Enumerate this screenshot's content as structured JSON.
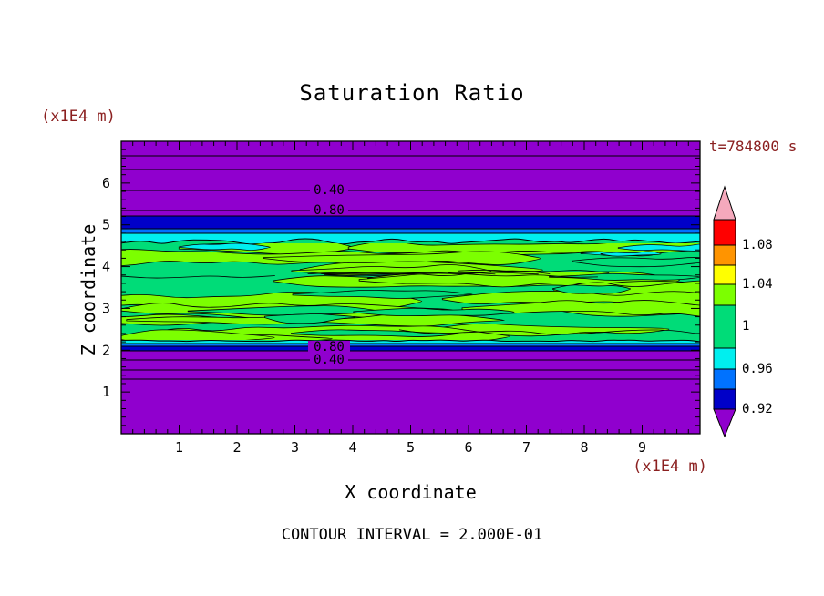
{
  "title": "Saturation Ratio",
  "annotations": {
    "time": "t=784800 s",
    "y_axis_units": "(x1E4 m)",
    "x_axis_units": "(x1E4 m)",
    "contour_interval": "CONTOUR INTERVAL = 2.000E-01"
  },
  "axes": {
    "x_label": "X coordinate",
    "y_label": "Z coordinate",
    "x_tick_labels": [
      "1",
      "2",
      "3",
      "4",
      "5",
      "6",
      "7",
      "8",
      "9"
    ],
    "y_tick_labels": [
      "1",
      "2",
      "3",
      "4",
      "5",
      "6"
    ]
  },
  "plot": {
    "contour_line_labels": [
      {
        "text": "0.40",
        "region": "top"
      },
      {
        "text": "0.80",
        "region": "top"
      },
      {
        "text": "0.80",
        "region": "bottom"
      },
      {
        "text": "0.40",
        "region": "bottom"
      }
    ]
  },
  "colorbar": {
    "tick_labels": [
      "1.08",
      "1.04",
      "1",
      "0.96",
      "0.92"
    ],
    "segment_colors_top_to_bottom": [
      "pink",
      "red",
      "orange",
      "yellow",
      "chartreuse",
      "springgreen",
      "cyan",
      "blue",
      "darkblue",
      "purple"
    ]
  },
  "colors": {
    "purple": "#9000CE",
    "darkblue": "#0000C8",
    "blue": "#0072FF",
    "cyan": "#00EFEF",
    "springgreen": "#00DC78",
    "chartreuse": "#7CFF00",
    "yellow": "#FFFF00",
    "orange": "#FF9400",
    "red": "#FF0000",
    "pink": "#F5A9BC",
    "annotation_text": "#8B2020",
    "ink": "#000000",
    "background": "#FFFFFF"
  },
  "chart_data": {
    "type": "heatmap",
    "title": "Saturation Ratio",
    "xlabel": "X coordinate (x1E4 m)",
    "ylabel": "Z coordinate (x1E4 m)",
    "xlim": [
      0,
      10
    ],
    "ylim": [
      0,
      7
    ],
    "time_annotation": "t=784800 s",
    "contour_interval": 0.2,
    "labeled_contours": [
      0.4,
      0.8
    ],
    "colorbar_levels": [
      0.92,
      0.96,
      1,
      1.04,
      1.08
    ],
    "legend_position": "right",
    "grid": false,
    "vertical_profile": [
      {
        "z_range": [
          5.3,
          7.0
        ],
        "saturation_ratio": "< 0.4",
        "color": "purple",
        "note": "horizontal contour lines 0.40 near z=5.8 and 0.80 near z=5.3"
      },
      {
        "z_range": [
          4.95,
          5.3
        ],
        "saturation_ratio": "0.90-0.94",
        "color": "darkblue band"
      },
      {
        "z_range": [
          4.6,
          4.95
        ],
        "saturation_ratio": "0.94-0.98",
        "color": "blue/cyan thin bands"
      },
      {
        "z_range": [
          2.2,
          4.6
        ],
        "saturation_ratio": "0.98-1.04",
        "color": "springgreen with turbulent chartreuse streaks"
      },
      {
        "z_range": [
          1.95,
          2.2
        ],
        "saturation_ratio": "0.90-0.98",
        "color": "cyan/blue/darkblue thin bands"
      },
      {
        "z_range": [
          0,
          1.95
        ],
        "saturation_ratio": "< 0.4",
        "color": "purple",
        "note": "horizontal contour lines 0.80 near z=2.05 and 0.40 near z=1.75"
      }
    ]
  }
}
